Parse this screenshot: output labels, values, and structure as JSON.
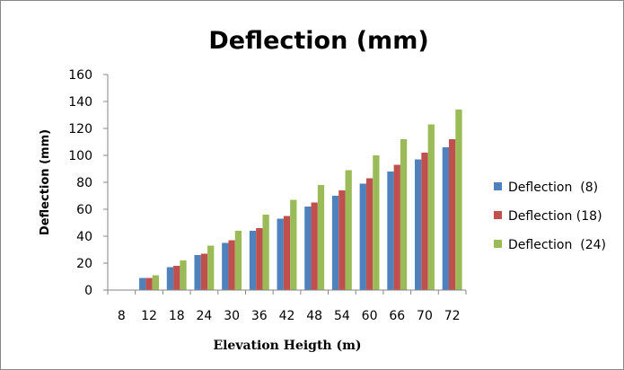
{
  "chart_data": {
    "type": "bar",
    "title": "Deflection (mm)",
    "xlabel": "Elevation Heigth (m)",
    "ylabel": "Deflection (mm)",
    "ylim": [
      0,
      160
    ],
    "yticks": [
      "0",
      "20",
      "40",
      "60",
      "80",
      "100",
      "120",
      "140",
      "160"
    ],
    "categories": [
      "8",
      "12",
      "18",
      "24",
      "30",
      "36",
      "42",
      "48",
      "54",
      "60",
      "66",
      "70",
      "72"
    ],
    "series": [
      {
        "name": "Deflection  (8)",
        "color": "#4f81bd",
        "values": [
          0,
          9,
          17,
          26,
          35,
          44,
          53,
          62,
          70,
          79,
          88,
          97,
          106
        ]
      },
      {
        "name": "Deflection (18)",
        "color": "#c0504d",
        "values": [
          0,
          9,
          18,
          27,
          37,
          46,
          55,
          65,
          74,
          83,
          93,
          102,
          112
        ]
      },
      {
        "name": "Deflection  (24)",
        "color": "#9bbb59",
        "values": [
          0,
          11,
          22,
          33,
          44,
          56,
          67,
          78,
          89,
          100,
          112,
          123,
          134
        ]
      }
    ],
    "grid": false,
    "legend_position": "right"
  }
}
